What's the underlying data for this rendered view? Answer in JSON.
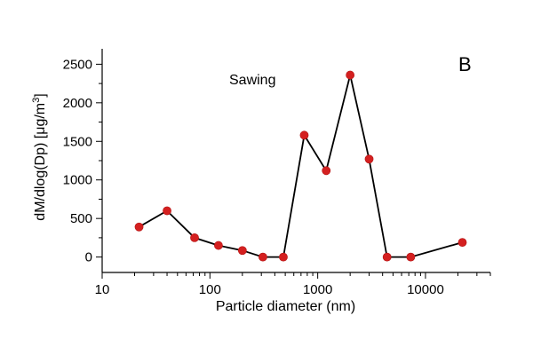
{
  "chart_data": {
    "type": "line",
    "panel_label": "B",
    "annotation": "Sawing",
    "xlabel": "Particle diameter (nm)",
    "ylabel_main": "dM/dlog(Dp) [μg/m",
    "ylabel_sup": "3",
    "ylabel_end": "]",
    "xscale": "log",
    "xlim": [
      10,
      40000
    ],
    "ylim": [
      -200,
      2700
    ],
    "xticks": [
      10,
      100,
      1000,
      10000
    ],
    "xtick_labels": [
      "10",
      "100",
      "1000",
      "10000"
    ],
    "yticks": [
      0,
      500,
      1000,
      1500,
      2000,
      2500
    ],
    "ytick_labels": [
      "0",
      "500",
      "1000",
      "1500",
      "2000",
      "2500"
    ],
    "grid": false,
    "colors": {
      "marker": "#d42020",
      "line": "#000000"
    },
    "series": [
      {
        "x": [
          22,
          40,
          72,
          120,
          200,
          310,
          480,
          750,
          1200,
          2000,
          3000,
          4400,
          7300,
          22000
        ],
        "y": [
          390,
          600,
          250,
          150,
          85,
          0,
          0,
          1580,
          1120,
          2360,
          1270,
          0,
          0,
          190
        ]
      }
    ]
  }
}
